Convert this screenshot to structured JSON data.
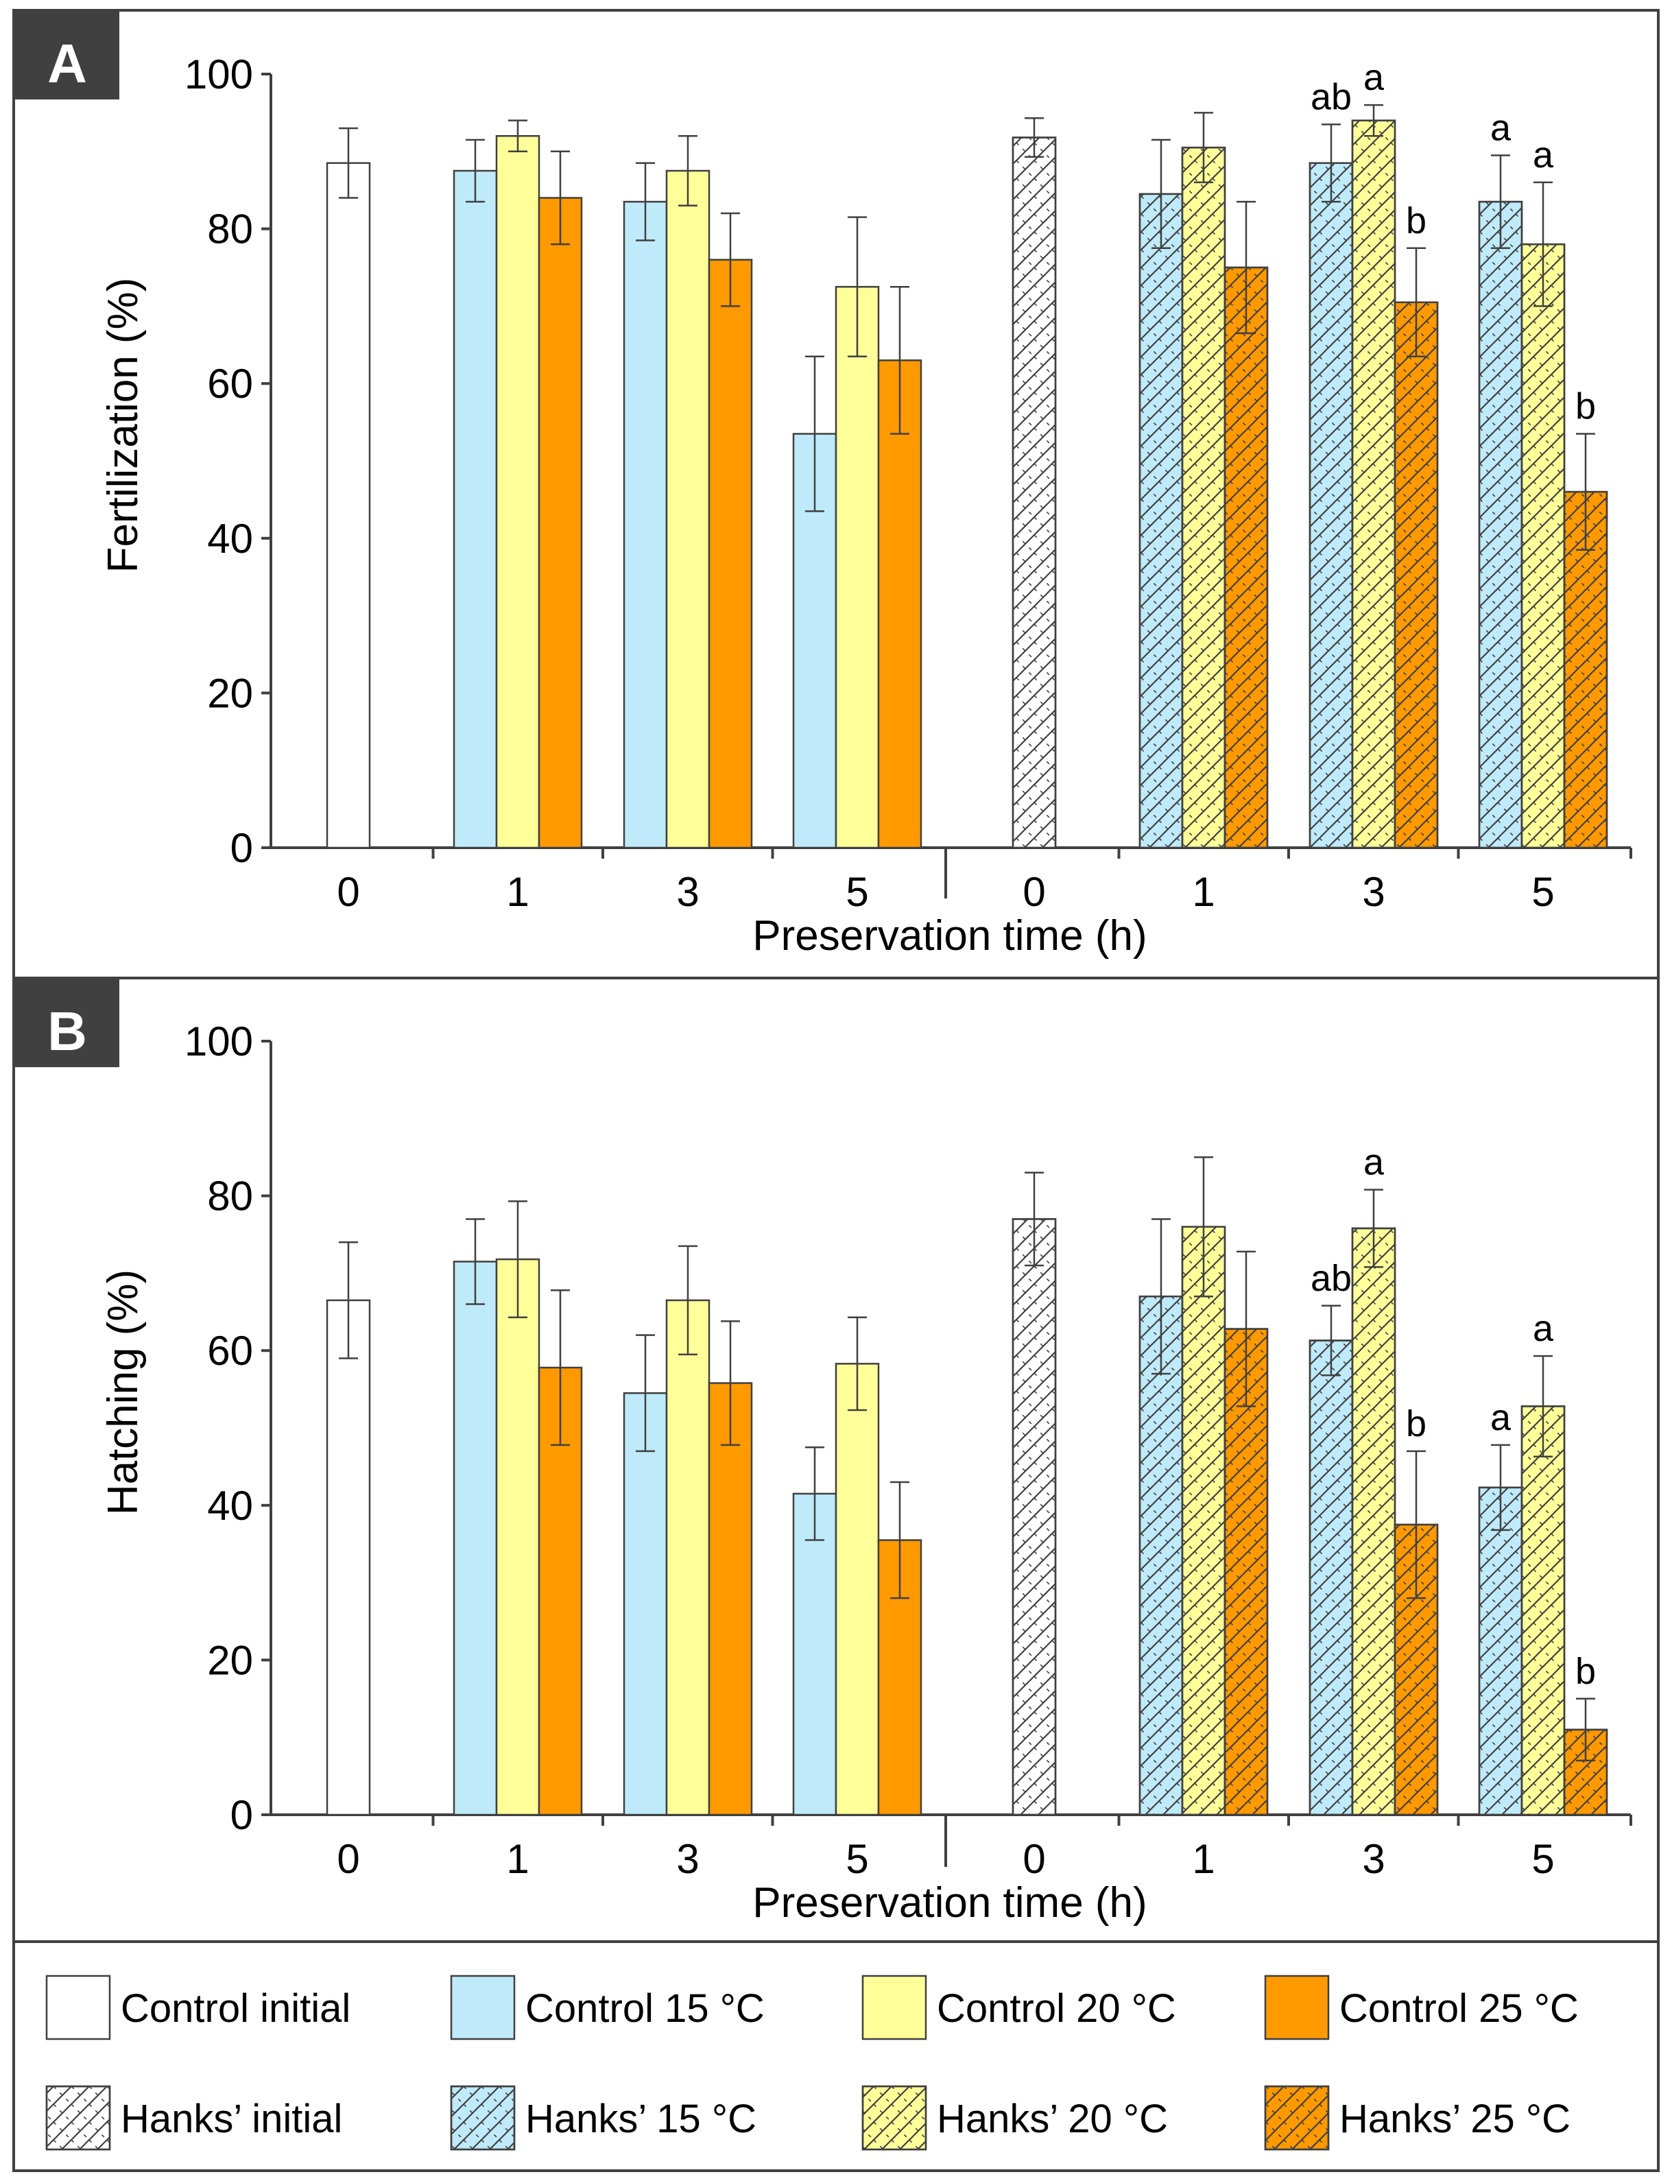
{
  "colors": {
    "control_initial": "#ffffff",
    "control_15": "#bfeaf9",
    "control_20": "#ffff99",
    "control_25": "#ff9900",
    "hanks_initial": "#ffffff",
    "hanks_15": "#bfeaf9",
    "hanks_20": "#ffff99",
    "hanks_25": "#ff9900",
    "panel_label_bg": "#404040",
    "axis": "#404040",
    "hatch": "#404040"
  },
  "legend": {
    "items": [
      {
        "label": "Control initial",
        "fill": "control_initial",
        "hatched": false
      },
      {
        "label": "Control 15 °C",
        "fill": "control_15",
        "hatched": false
      },
      {
        "label": "Control 20 °C",
        "fill": "control_20",
        "hatched": false
      },
      {
        "label": "Control 25 °C",
        "fill": "control_25",
        "hatched": false
      },
      {
        "label": "Hanks’ initial",
        "fill": "hanks_initial",
        "hatched": true
      },
      {
        "label": "Hanks’ 15 °C",
        "fill": "hanks_15",
        "hatched": true
      },
      {
        "label": "Hanks’ 20 °C",
        "fill": "hanks_20",
        "hatched": true
      },
      {
        "label": "Hanks’ 25 °C",
        "fill": "hanks_25",
        "hatched": true
      }
    ]
  },
  "chart_data": [
    {
      "type": "bar",
      "panel_label": "A",
      "title": "",
      "xlabel": "Preservation time (h)",
      "ylabel": "Fertilization (%)",
      "ylim": [
        0,
        100
      ],
      "yticks": [
        0,
        20,
        40,
        60,
        80,
        100
      ],
      "categories": [
        "0",
        "1",
        "3",
        "5",
        "0",
        "1",
        "3",
        "5"
      ],
      "groups": [
        {
          "category": "0",
          "bars": [
            {
              "series": "Control initial",
              "fill": "control_initial",
              "hatched": false,
              "value": 88.5,
              "err": 4.5,
              "label": ""
            }
          ]
        },
        {
          "category": "1",
          "bars": [
            {
              "series": "Control 15 °C",
              "fill": "control_15",
              "hatched": false,
              "value": 87.5,
              "err": 4,
              "label": ""
            },
            {
              "series": "Control 20 °C",
              "fill": "control_20",
              "hatched": false,
              "value": 92,
              "err": 2,
              "label": ""
            },
            {
              "series": "Control 25 °C",
              "fill": "control_25",
              "hatched": false,
              "value": 84,
              "err": 6,
              "label": ""
            }
          ]
        },
        {
          "category": "3",
          "bars": [
            {
              "series": "Control 15 °C",
              "fill": "control_15",
              "hatched": false,
              "value": 83.5,
              "err": 5,
              "label": ""
            },
            {
              "series": "Control 20 °C",
              "fill": "control_20",
              "hatched": false,
              "value": 87.5,
              "err": 4.5,
              "label": ""
            },
            {
              "series": "Control 25 °C",
              "fill": "control_25",
              "hatched": false,
              "value": 76,
              "err": 6,
              "label": ""
            }
          ]
        },
        {
          "category": "5",
          "bars": [
            {
              "series": "Control 15 °C",
              "fill": "control_15",
              "hatched": false,
              "value": 53.5,
              "err": 10,
              "label": ""
            },
            {
              "series": "Control 20 °C",
              "fill": "control_20",
              "hatched": false,
              "value": 72.5,
              "err": 9,
              "label": ""
            },
            {
              "series": "Control 25 °C",
              "fill": "control_25",
              "hatched": false,
              "value": 63,
              "err": 9.5,
              "label": ""
            }
          ]
        },
        {
          "category": "0",
          "bars": [
            {
              "series": "Hanks’ initial",
              "fill": "hanks_initial",
              "hatched": true,
              "value": 91.8,
              "err": 2.5,
              "label": ""
            }
          ]
        },
        {
          "category": "1",
          "bars": [
            {
              "series": "Hanks’ 15 °C",
              "fill": "hanks_15",
              "hatched": true,
              "value": 84.5,
              "err": 7,
              "label": ""
            },
            {
              "series": "Hanks’ 20 °C",
              "fill": "hanks_20",
              "hatched": true,
              "value": 90.5,
              "err": 4.5,
              "label": ""
            },
            {
              "series": "Hanks’ 25 °C",
              "fill": "hanks_25",
              "hatched": true,
              "value": 75,
              "err": 8.5,
              "label": ""
            }
          ]
        },
        {
          "category": "3",
          "bars": [
            {
              "series": "Hanks’ 15 °C",
              "fill": "hanks_15",
              "hatched": true,
              "value": 88.5,
              "err": 5,
              "label": "ab"
            },
            {
              "series": "Hanks’ 20 °C",
              "fill": "hanks_20",
              "hatched": true,
              "value": 94,
              "err": 2,
              "label": "a"
            },
            {
              "series": "Hanks’ 25 °C",
              "fill": "hanks_25",
              "hatched": true,
              "value": 70.5,
              "err": 7,
              "label": "b"
            }
          ]
        },
        {
          "category": "5",
          "bars": [
            {
              "series": "Hanks’ 15 °C",
              "fill": "hanks_15",
              "hatched": true,
              "value": 83.5,
              "err": 6,
              "label": "a"
            },
            {
              "series": "Hanks’ 20 °C",
              "fill": "hanks_20",
              "hatched": true,
              "value": 78,
              "err": 8,
              "label": "a"
            },
            {
              "series": "Hanks’ 25 °C",
              "fill": "hanks_25",
              "hatched": true,
              "value": 46,
              "err": 7.5,
              "label": "b"
            }
          ]
        }
      ]
    },
    {
      "type": "bar",
      "panel_label": "B",
      "title": "",
      "xlabel": "Preservation time (h)",
      "ylabel": "Hatching (%)",
      "ylim": [
        0,
        100
      ],
      "yticks": [
        0,
        20,
        40,
        60,
        80,
        100
      ],
      "categories": [
        "0",
        "1",
        "3",
        "5",
        "0",
        "1",
        "3",
        "5"
      ],
      "groups": [
        {
          "category": "0",
          "bars": [
            {
              "series": "Control initial",
              "fill": "control_initial",
              "hatched": false,
              "value": 66.5,
              "err": 7.5,
              "label": ""
            }
          ]
        },
        {
          "category": "1",
          "bars": [
            {
              "series": "Control 15 °C",
              "fill": "control_15",
              "hatched": false,
              "value": 71.5,
              "err": 5.5,
              "label": ""
            },
            {
              "series": "Control 20 °C",
              "fill": "control_20",
              "hatched": false,
              "value": 71.8,
              "err": 7.5,
              "label": ""
            },
            {
              "series": "Control 25 °C",
              "fill": "control_25",
              "hatched": false,
              "value": 57.8,
              "err": 10,
              "label": ""
            }
          ]
        },
        {
          "category": "3",
          "bars": [
            {
              "series": "Control 15 °C",
              "fill": "control_15",
              "hatched": false,
              "value": 54.5,
              "err": 7.5,
              "label": ""
            },
            {
              "series": "Control 20 °C",
              "fill": "control_20",
              "hatched": false,
              "value": 66.5,
              "err": 7,
              "label": ""
            },
            {
              "series": "Control 25 °C",
              "fill": "control_25",
              "hatched": false,
              "value": 55.8,
              "err": 8,
              "label": ""
            }
          ]
        },
        {
          "category": "5",
          "bars": [
            {
              "series": "Control 15 °C",
              "fill": "control_15",
              "hatched": false,
              "value": 41.5,
              "err": 6,
              "label": ""
            },
            {
              "series": "Control 20 °C",
              "fill": "control_20",
              "hatched": false,
              "value": 58.3,
              "err": 6,
              "label": ""
            },
            {
              "series": "Control 25 °C",
              "fill": "control_25",
              "hatched": false,
              "value": 35.5,
              "err": 7.5,
              "label": ""
            }
          ]
        },
        {
          "category": "0",
          "bars": [
            {
              "series": "Hanks’ initial",
              "fill": "hanks_initial",
              "hatched": true,
              "value": 77,
              "err": 6,
              "label": ""
            }
          ]
        },
        {
          "category": "1",
          "bars": [
            {
              "series": "Hanks’ 15 °C",
              "fill": "hanks_15",
              "hatched": true,
              "value": 67,
              "err": 10,
              "label": ""
            },
            {
              "series": "Hanks’ 20 °C",
              "fill": "hanks_20",
              "hatched": true,
              "value": 76,
              "err": 9,
              "label": ""
            },
            {
              "series": "Hanks’ 25 °C",
              "fill": "hanks_25",
              "hatched": true,
              "value": 62.8,
              "err": 10,
              "label": ""
            }
          ]
        },
        {
          "category": "3",
          "bars": [
            {
              "series": "Hanks’ 15 °C",
              "fill": "hanks_15",
              "hatched": true,
              "value": 61.3,
              "err": 4.5,
              "label": "ab"
            },
            {
              "series": "Hanks’ 20 °C",
              "fill": "hanks_20",
              "hatched": true,
              "value": 75.8,
              "err": 5,
              "label": "a"
            },
            {
              "series": "Hanks’ 25 °C",
              "fill": "hanks_25",
              "hatched": true,
              "value": 37.5,
              "err": 9.5,
              "label": "b"
            }
          ]
        },
        {
          "category": "5",
          "bars": [
            {
              "series": "Hanks’ 15 °C",
              "fill": "hanks_15",
              "hatched": true,
              "value": 42.3,
              "err": 5.5,
              "label": "a"
            },
            {
              "series": "Hanks’ 20 °C",
              "fill": "hanks_20",
              "hatched": true,
              "value": 52.8,
              "err": 6.5,
              "label": "a"
            },
            {
              "series": "Hanks’ 25 °C",
              "fill": "hanks_25",
              "hatched": true,
              "value": 11,
              "err": 4,
              "label": "b"
            }
          ]
        }
      ]
    }
  ]
}
